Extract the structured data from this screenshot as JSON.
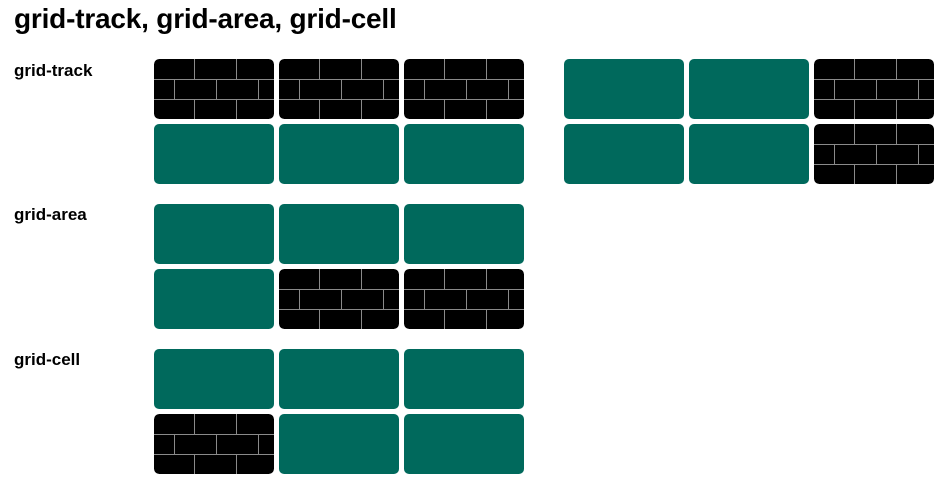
{
  "page": {
    "title": "grid-track, grid-area, grid-cell"
  },
  "colors": {
    "highlight": "#00695c",
    "empty": "#000000",
    "mortar": "#8a8a8a"
  },
  "sections": [
    {
      "label": "grid-track"
    },
    {
      "label": "grid-area"
    },
    {
      "label": "grid-cell"
    }
  ],
  "grids": [
    {
      "section": "grid-track",
      "cells": [
        "empty",
        "empty",
        "empty",
        "highlight",
        "highlight",
        "highlight"
      ]
    },
    {
      "section": "grid-track",
      "cells": [
        "highlight",
        "highlight",
        "empty",
        "highlight",
        "highlight",
        "empty"
      ]
    },
    {
      "section": "grid-area",
      "cells": [
        "highlight",
        "highlight",
        "highlight",
        "highlight",
        "empty",
        "empty"
      ]
    },
    {
      "section": "grid-cell",
      "cells": [
        "highlight",
        "highlight",
        "highlight",
        "empty",
        "highlight",
        "highlight"
      ]
    }
  ]
}
